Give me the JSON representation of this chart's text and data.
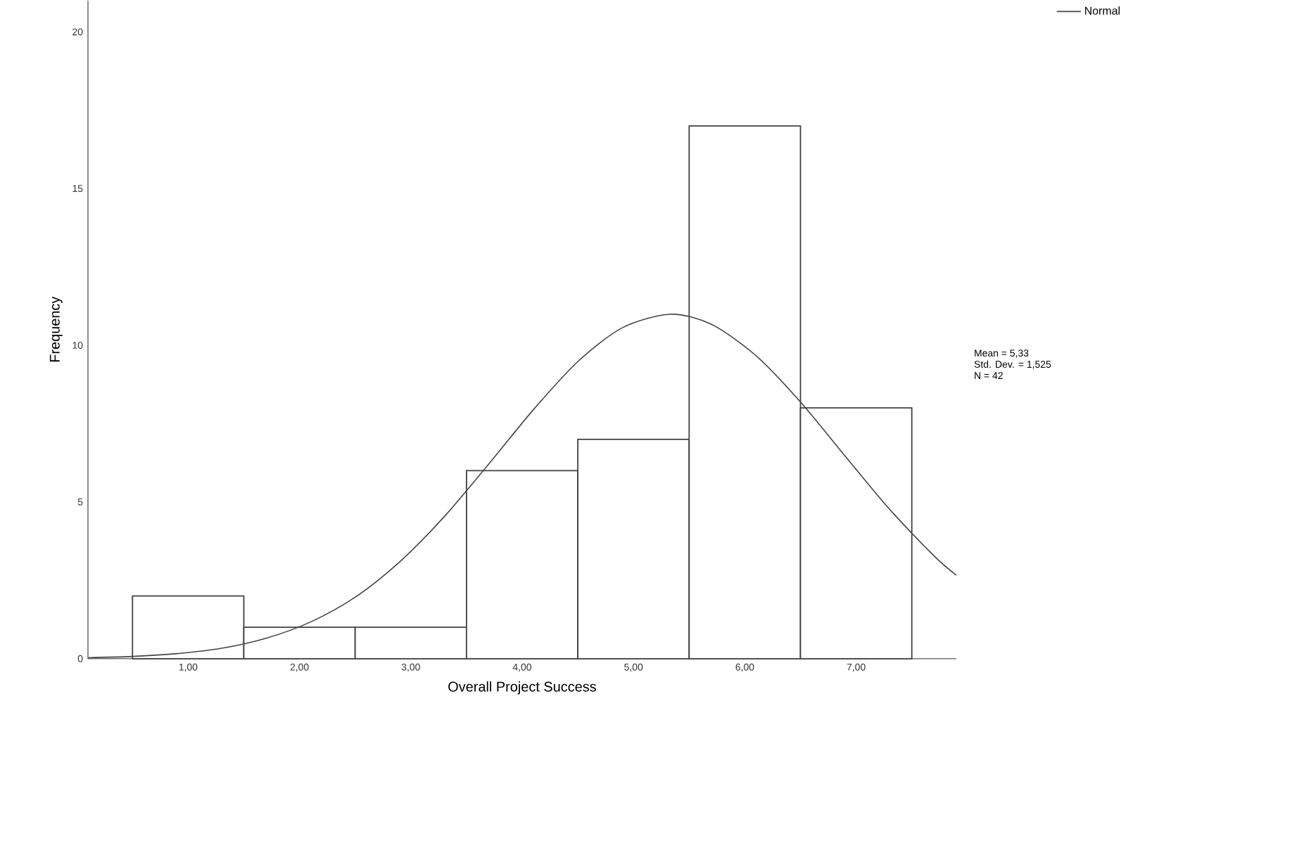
{
  "chart_data": {
    "type": "histogram",
    "xlabel": "Overall Project Success",
    "ylabel": "Frequency",
    "bins": [
      0.5,
      1.5,
      2.5,
      3.5,
      4.5,
      5.5,
      6.5,
      7.5
    ],
    "values": [
      2,
      1,
      1,
      6,
      7,
      17,
      8
    ],
    "color": "#ffffff",
    "series": [
      {
        "name": "Normal",
        "type": "line",
        "color": "#444444",
        "x": [
          0.1,
          0.5,
          0.9,
          1.3,
          1.7,
          2.1,
          2.5,
          2.9,
          3.3,
          3.7,
          4.1,
          4.5,
          4.9,
          5.33,
          5.7,
          6.1,
          6.5,
          6.9,
          7.3,
          7.7,
          7.9
        ],
        "values": [
          0.03,
          0.07,
          0.16,
          0.33,
          0.65,
          1.17,
          1.96,
          3.09,
          4.53,
          6.21,
          7.94,
          9.48,
          10.56,
          10.99,
          10.67,
          9.67,
          8.19,
          6.47,
          4.77,
          3.28,
          2.66
        ]
      }
    ],
    "xlim": [
      0.1,
      7.9
    ],
    "ylim": [
      0,
      21
    ],
    "xticks": [
      {
        "value": 1,
        "label": "1,00"
      },
      {
        "value": 2,
        "label": "2,00"
      },
      {
        "value": 3,
        "label": "3,00"
      },
      {
        "value": 4,
        "label": "4,00"
      },
      {
        "value": 5,
        "label": "5,00"
      },
      {
        "value": 6,
        "label": "6,00"
      },
      {
        "value": 7,
        "label": "7,00"
      }
    ],
    "yticks": [
      0,
      5,
      10,
      15,
      20
    ],
    "legend": "top right",
    "marker": "none",
    "line_style": "solid",
    "grid": false,
    "annotations": [
      "Mean = 5,33",
      "Std. Dev. = 1,525",
      "N = 42"
    ]
  }
}
